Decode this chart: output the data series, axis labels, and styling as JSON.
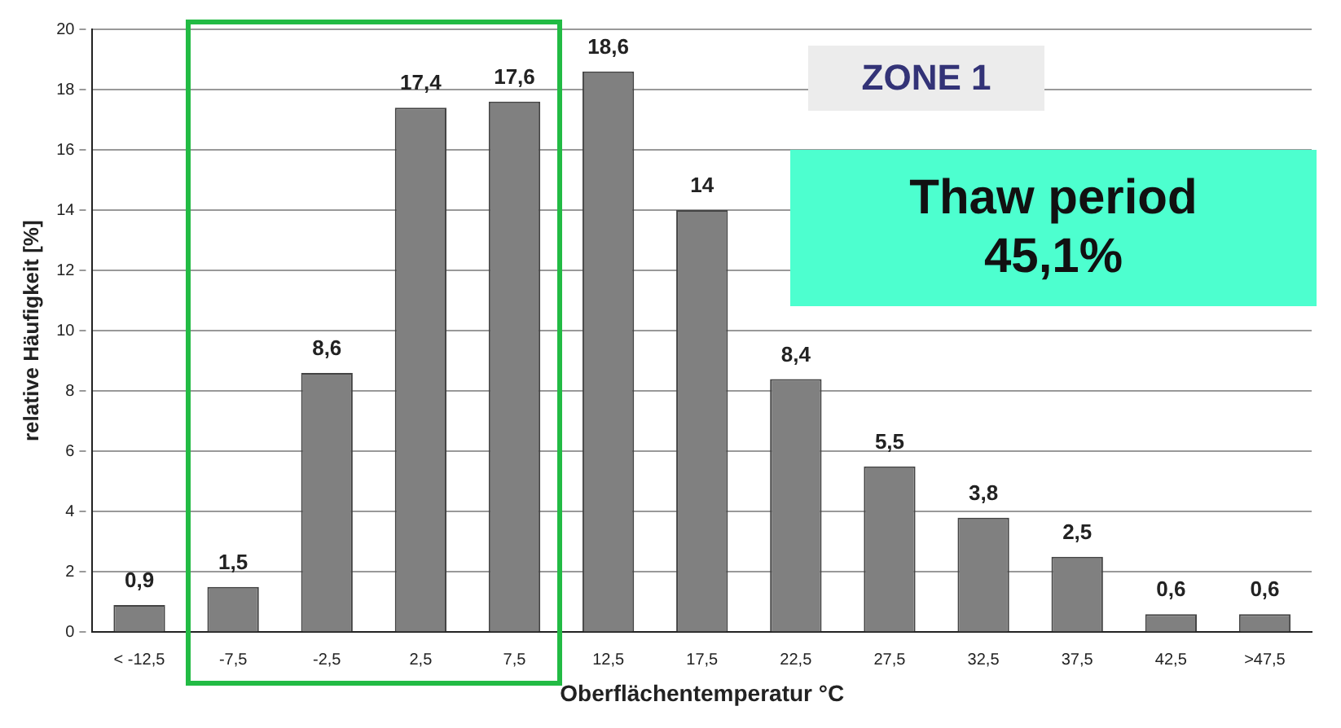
{
  "chart_data": {
    "type": "bar",
    "xlabel": "Oberflächentemperatur °C",
    "ylabel": "relative Häufigkeit [%]",
    "categories": [
      "< -12,5",
      "-7,5",
      "-2,5",
      "2,5",
      "7,5",
      "12,5",
      "17,5",
      "22,5",
      "27,5",
      "32,5",
      "37,5",
      "42,5",
      ">47,5"
    ],
    "values": [
      0.9,
      1.5,
      8.6,
      17.4,
      17.6,
      18.6,
      14,
      8.4,
      5.5,
      3.8,
      2.5,
      0.6,
      0.6
    ],
    "value_labels": [
      "0,9",
      "1,5",
      "8,6",
      "17,4",
      "17,6",
      "18,6",
      "14",
      "8,4",
      "5,5",
      "3,8",
      "2,5",
      "0,6",
      "0,6"
    ],
    "color": "#808080",
    "ylim": [
      0,
      20
    ],
    "yticks": [
      0,
      2,
      4,
      6,
      8,
      10,
      12,
      14,
      16,
      18,
      20
    ],
    "grid": "y",
    "legend": false,
    "annotations": [
      "ZONE 1",
      "Thaw period 45,1%"
    ]
  }
}
